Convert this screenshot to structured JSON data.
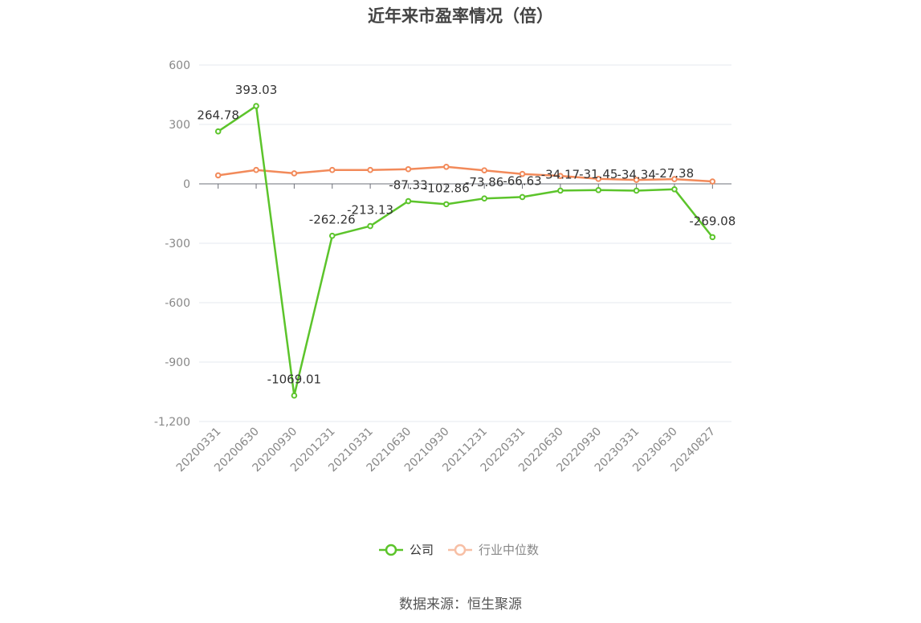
{
  "title": "近年来市盈率情况（倍）",
  "source": "数据来源：恒生聚源",
  "chart_data": {
    "type": "line",
    "title": "近年来市盈率情况（倍）",
    "xlabel": "",
    "ylabel": "",
    "categories": [
      "20200331",
      "20200630",
      "20200930",
      "20201231",
      "20210331",
      "20210630",
      "20210930",
      "20211231",
      "20220331",
      "20220630",
      "20220930",
      "20230331",
      "20230630",
      "20240827"
    ],
    "ylim": [
      -1200,
      600
    ],
    "yticks": [
      600,
      300,
      0,
      -300,
      -600,
      -900,
      -1200
    ],
    "ytick_labels": [
      "600",
      "300",
      "0",
      "-300",
      "-600",
      "-900",
      "-1,200"
    ],
    "grid": true,
    "legend_position": "bottom-center",
    "series": [
      {
        "name": "公司",
        "color": "#5cc42b",
        "values": [
          264.78,
          393.03,
          -1069.01,
          -262.26,
          -213.13,
          -87.33,
          -102.86,
          -73.86,
          -66.63,
          -34.17,
          -31.45,
          -34.34,
          -27.38,
          -269.08
        ],
        "labels": [
          "264.78",
          "393.03",
          "-1069.01",
          "-262.26",
          "-213.13",
          "-87.33",
          "-102.86",
          "-73.86",
          "-66.63",
          "-34.17",
          "-31.45",
          "-34.34",
          "-27.38",
          "-269.08"
        ]
      },
      {
        "name": "行业中位数",
        "color": "#f28a5a",
        "legend_color": "#f7bfa5",
        "values": [
          43,
          70,
          53,
          70,
          70,
          74,
          86,
          68,
          50,
          40,
          25,
          20,
          24,
          12
        ]
      }
    ]
  }
}
